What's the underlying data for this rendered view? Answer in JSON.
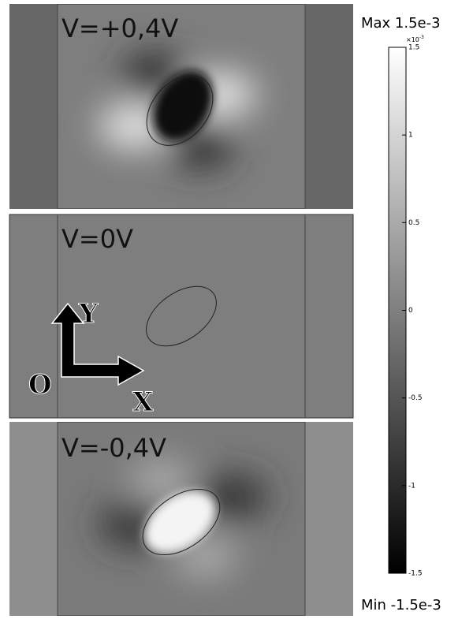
{
  "panels": [
    {
      "label": "V=+0,4V"
    },
    {
      "label": "V=0V"
    },
    {
      "label": "V=-0,4V"
    }
  ],
  "axes": {
    "y": "Y",
    "origin": "O",
    "x": "X"
  },
  "colorbar": {
    "max_label": "Max 1.5e-3",
    "min_label": "Min -1.5e-3",
    "multiplier": "×10",
    "exponent": "-3",
    "ticks": [
      1.5,
      1,
      0.5,
      0,
      -0.5,
      -1,
      -1.5
    ]
  }
}
